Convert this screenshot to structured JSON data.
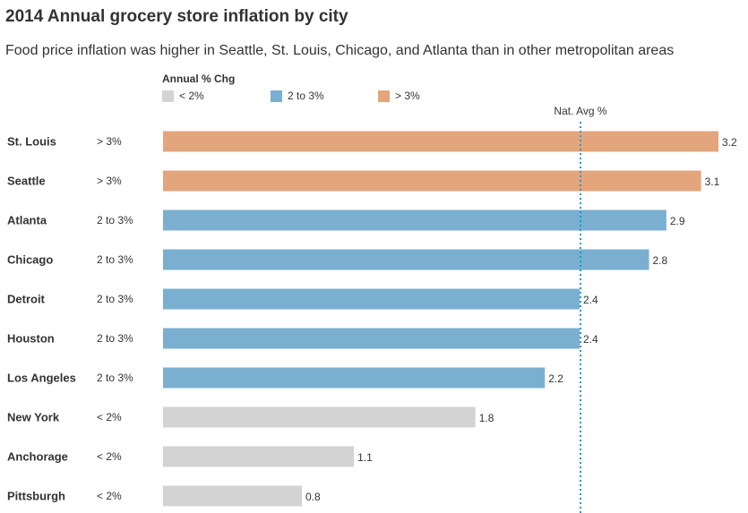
{
  "chart_data": {
    "type": "bar",
    "orientation": "horizontal",
    "title": "2014 Annual grocery store inflation by city",
    "subtitle": "Food price inflation was higher in Seattle, St. Louis, Chicago, and Atlanta than in other metropolitan areas",
    "categories": [
      "St. Louis",
      "Seattle",
      "Atlanta",
      "Chicago",
      "Detroit",
      "Houston",
      "Los Angeles",
      "New York",
      "Anchorage",
      "Pittsburgh"
    ],
    "values": [
      3.2,
      3.1,
      2.9,
      2.8,
      2.4,
      2.4,
      2.2,
      1.8,
      1.1,
      0.8
    ],
    "value_labels": [
      "3.2",
      "3.1",
      "2.9",
      "2.8",
      "2.4",
      "2.4",
      "2.2",
      "1.8",
      "1.1",
      "0.8"
    ],
    "groups": [
      "> 3%",
      "> 3%",
      "2 to 3%",
      "2 to 3%",
      "2 to 3%",
      "2 to 3%",
      "2 to 3%",
      "< 2%",
      "< 2%",
      "< 2%"
    ],
    "legend": {
      "title": "Annual % Chg",
      "placement": "top",
      "items": [
        {
          "label": "< 2%",
          "color": "#d3d3d3"
        },
        {
          "label": "2 to 3%",
          "color": "#7aafd0"
        },
        {
          "label": "> 3%",
          "color": "#e3a57c"
        }
      ]
    },
    "reference_line": {
      "label": "Nat. Avg %",
      "value": 2.4,
      "color": "#1a9ad6",
      "style": "dotted"
    },
    "xlim": [
      0,
      3.2
    ],
    "grid": false
  }
}
